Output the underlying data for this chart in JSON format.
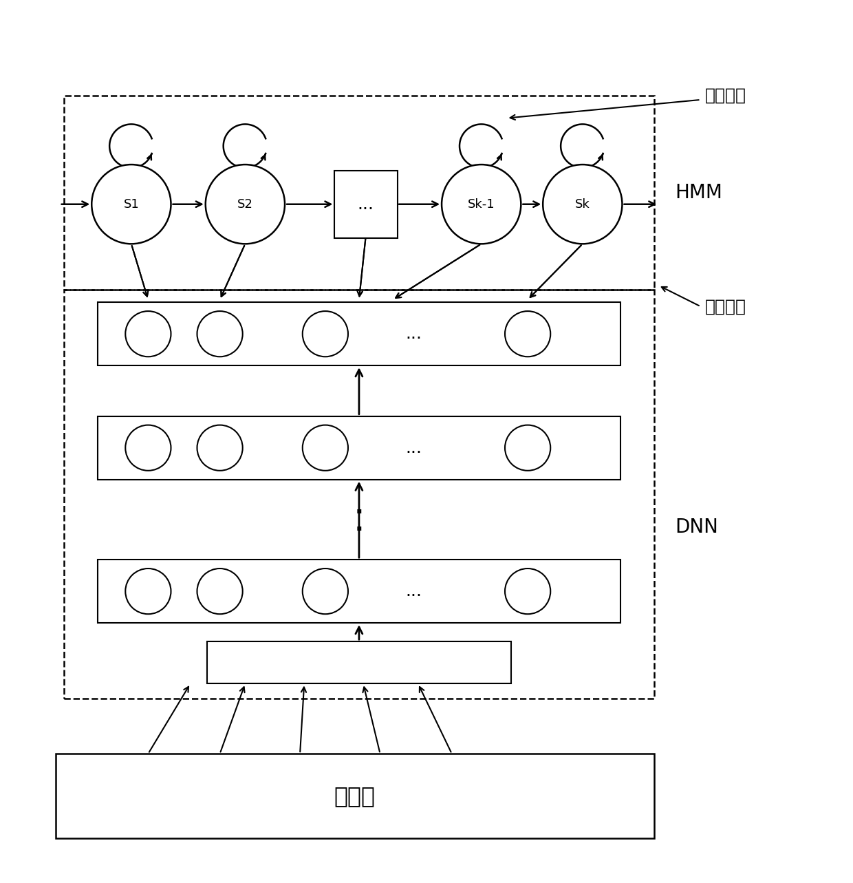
{
  "bg_color": "#ffffff",
  "fig_width": 12.4,
  "fig_height": 12.83,
  "dpi": 100,
  "hmm_label": "HMM",
  "dnn_label": "DNN",
  "obs_label": "观测値",
  "hmm_states": [
    "S1",
    "S2",
    "...",
    "Sk-1",
    "Sk"
  ],
  "transfer_prob_label": "转移概率",
  "obs_prob_label": "观测概率",
  "font_size_label": 20,
  "font_size_state": 13,
  "font_size_annotation": 18,
  "font_size_obs": 24
}
